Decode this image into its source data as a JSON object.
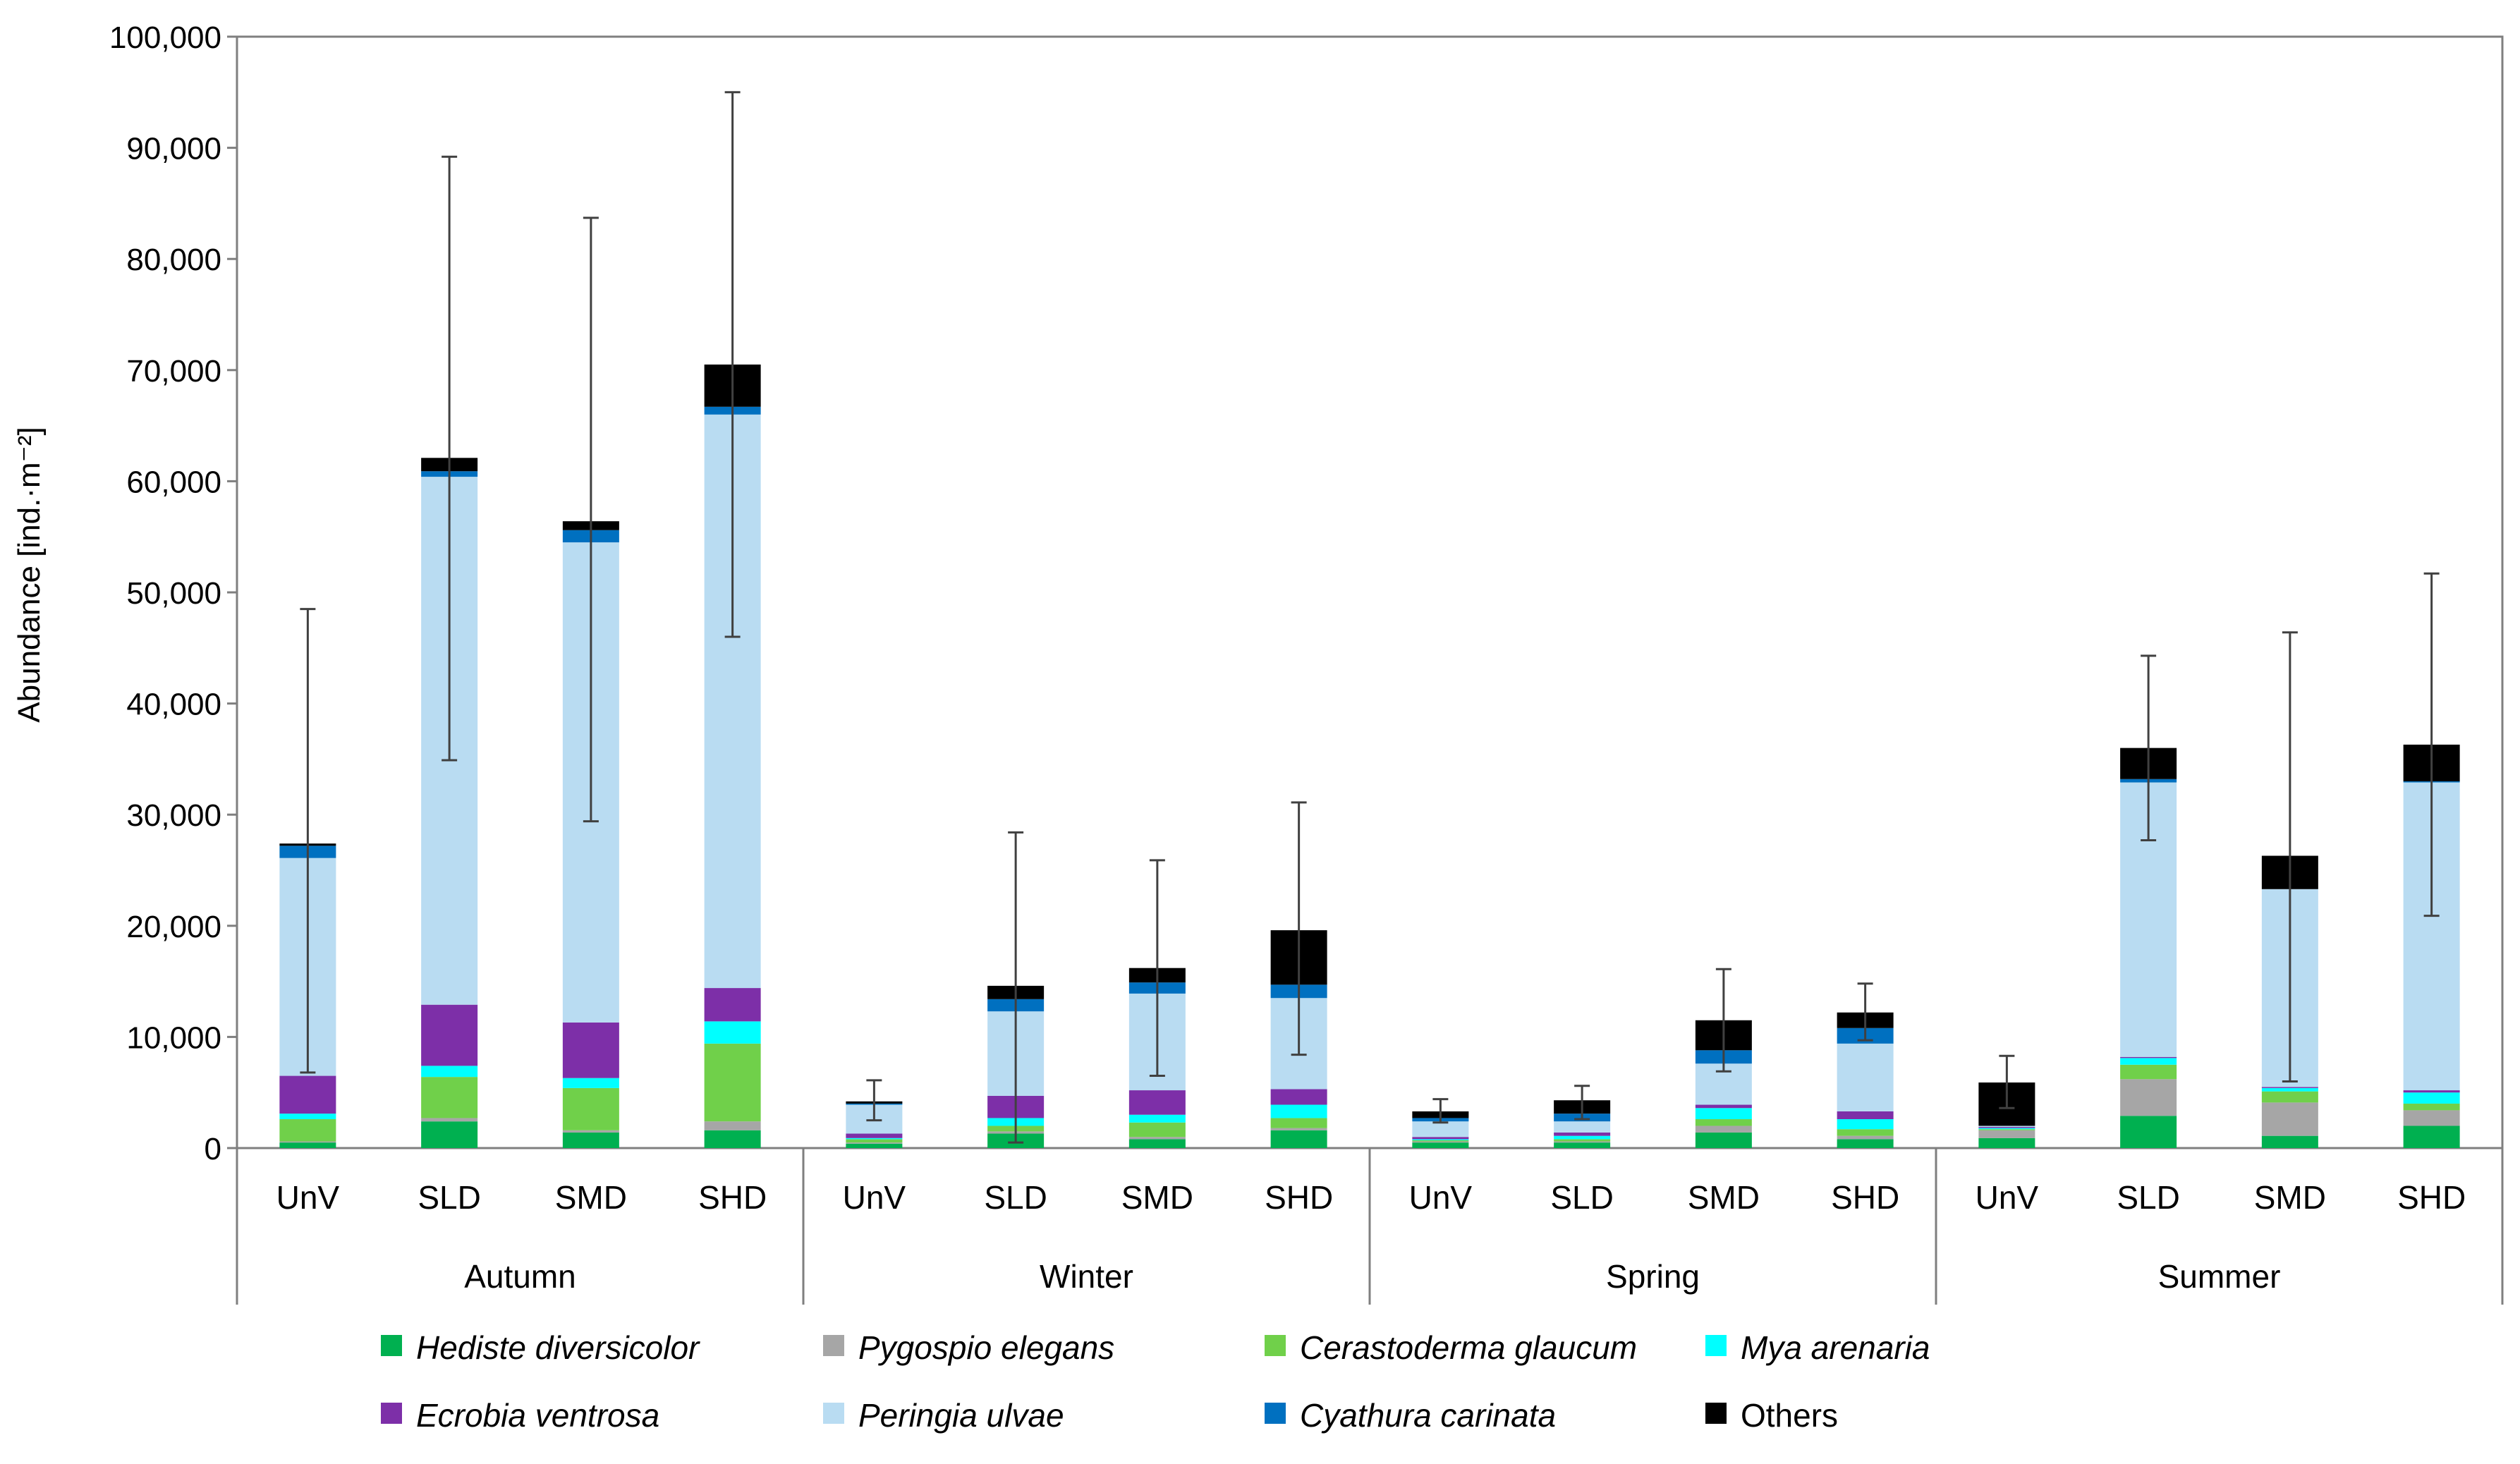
{
  "chart_data": {
    "type": "bar",
    "stacked": true,
    "title": "",
    "xlabel": "",
    "ylabel": "Abundance [ind.·m⁻²]",
    "ylim": [
      0,
      100000
    ],
    "yticks": [
      0,
      10000,
      20000,
      30000,
      40000,
      50000,
      60000,
      70000,
      80000,
      90000,
      100000
    ],
    "ytick_labels": [
      "0",
      "10,000",
      "20,000",
      "30,000",
      "40,000",
      "50,000",
      "60,000",
      "70,000",
      "80,000",
      "90,000",
      "100,000"
    ],
    "grid": false,
    "legend_position": "bottom",
    "groups": [
      "Autumn",
      "Winter",
      "Spring",
      "Summer"
    ],
    "categories": [
      "UnV",
      "SLD",
      "SMD",
      "SHD",
      "UnV",
      "SLD",
      "SMD",
      "SHD",
      "UnV",
      "SLD",
      "SMD",
      "SHD",
      "UnV",
      "SLD",
      "SMD",
      "SHD"
    ],
    "series": [
      {
        "name": "Hediste diversicolor",
        "italic": true,
        "color": "#00b050",
        "values": [
          500,
          2400,
          1400,
          1600,
          400,
          1300,
          800,
          1600,
          500,
          500,
          1400,
          800,
          900,
          2900,
          1100,
          2000
        ]
      },
      {
        "name": "Pygospio elegans",
        "italic": true,
        "color": "#a6a6a6",
        "values": [
          100,
          300,
          200,
          800,
          100,
          200,
          200,
          200,
          100,
          100,
          600,
          300,
          700,
          3300,
          3000,
          1400
        ]
      },
      {
        "name": "Cerastoderma glaucum",
        "italic": true,
        "color": "#70d04a",
        "values": [
          2000,
          3700,
          3800,
          7000,
          300,
          500,
          1300,
          900,
          100,
          200,
          600,
          600,
          100,
          1300,
          1000,
          600
        ]
      },
      {
        "name": "Mya arenaria",
        "italic": true,
        "color": "#00ffff",
        "values": [
          500,
          1000,
          900,
          2000,
          100,
          700,
          700,
          1200,
          100,
          300,
          1000,
          900,
          100,
          600,
          300,
          1000
        ]
      },
      {
        "name": "Ecrobia ventrosa",
        "italic": true,
        "color": "#7d2fa8",
        "values": [
          3400,
          5500,
          5000,
          3000,
          400,
          2000,
          2200,
          1400,
          200,
          300,
          300,
          700,
          100,
          100,
          100,
          200
        ]
      },
      {
        "name": "Peringia ulvae",
        "italic": true,
        "color": "#b9dcf2",
        "values": [
          19600,
          47500,
          43200,
          51600,
          2600,
          7600,
          8700,
          8200,
          1400,
          1000,
          3700,
          6100,
          100,
          24700,
          17800,
          27700
        ]
      },
      {
        "name": "Cyathura carinata",
        "italic": true,
        "color": "#0070c0",
        "values": [
          1100,
          500,
          1100,
          700,
          100,
          1100,
          1000,
          1200,
          300,
          700,
          1200,
          1400,
          0,
          300,
          0,
          100
        ]
      },
      {
        "name": "Others",
        "italic": false,
        "color": "#000000",
        "values": [
          200,
          1200,
          800,
          3800,
          200,
          1200,
          1300,
          4900,
          600,
          1200,
          2700,
          1400,
          3900,
          2800,
          3000,
          3300
        ]
      }
    ],
    "error_bars": {
      "upper": [
        48500,
        89200,
        83700,
        95000,
        6100,
        28400,
        25900,
        31100,
        4400,
        5600,
        16100,
        14800,
        8300,
        44300,
        46400,
        51700
      ],
      "lower": [
        6800,
        34900,
        29400,
        46000,
        2500,
        500,
        6500,
        8400,
        2300,
        2600,
        6900,
        9700,
        3600,
        27700,
        6000,
        20900
      ]
    }
  }
}
